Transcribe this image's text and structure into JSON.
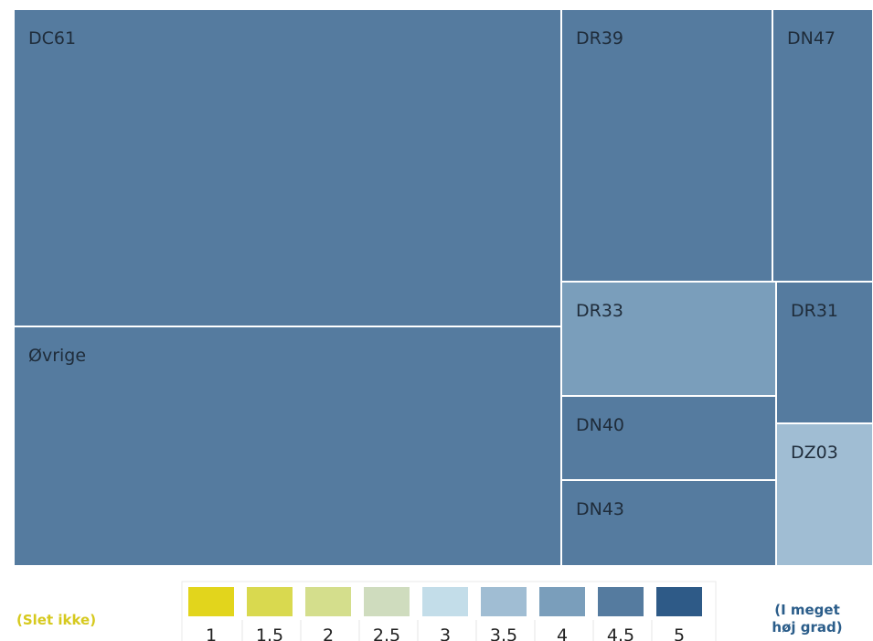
{
  "chart_data": {
    "type": "treemap",
    "tiles": [
      {
        "label": "DC61",
        "value": 4.5
      },
      {
        "label": "Øvrige",
        "value": 4.5
      },
      {
        "label": "DR39",
        "value": 4.5
      },
      {
        "label": "DN47",
        "value": 4.5
      },
      {
        "label": "DR33",
        "value": 4.0
      },
      {
        "label": "DR31",
        "value": 4.5
      },
      {
        "label": "DN40",
        "value": 4.5
      },
      {
        "label": "DN43",
        "value": 4.5
      },
      {
        "label": "DZ03",
        "value": 3.5
      }
    ],
    "legend": {
      "low_label": "(Slet ikke)",
      "high_label_line1": "(I meget",
      "high_label_line2": "høj grad)",
      "low_color": "#d6c91e",
      "high_color": "#2b5d8a",
      "steps": [
        {
          "label": "1",
          "color": "#e2d51c"
        },
        {
          "label": "1.5",
          "color": "#d9d94f"
        },
        {
          "label": "2",
          "color": "#d4de8c"
        },
        {
          "label": "2.5",
          "color": "#cfdcbe"
        },
        {
          "label": "3",
          "color": "#c3dde9"
        },
        {
          "label": "3.5",
          "color": "#a0bdd3"
        },
        {
          "label": "4",
          "color": "#7a9ebb"
        },
        {
          "label": "4.5",
          "color": "#557b9f"
        },
        {
          "label": "5",
          "color": "#2e5a87"
        }
      ]
    }
  }
}
